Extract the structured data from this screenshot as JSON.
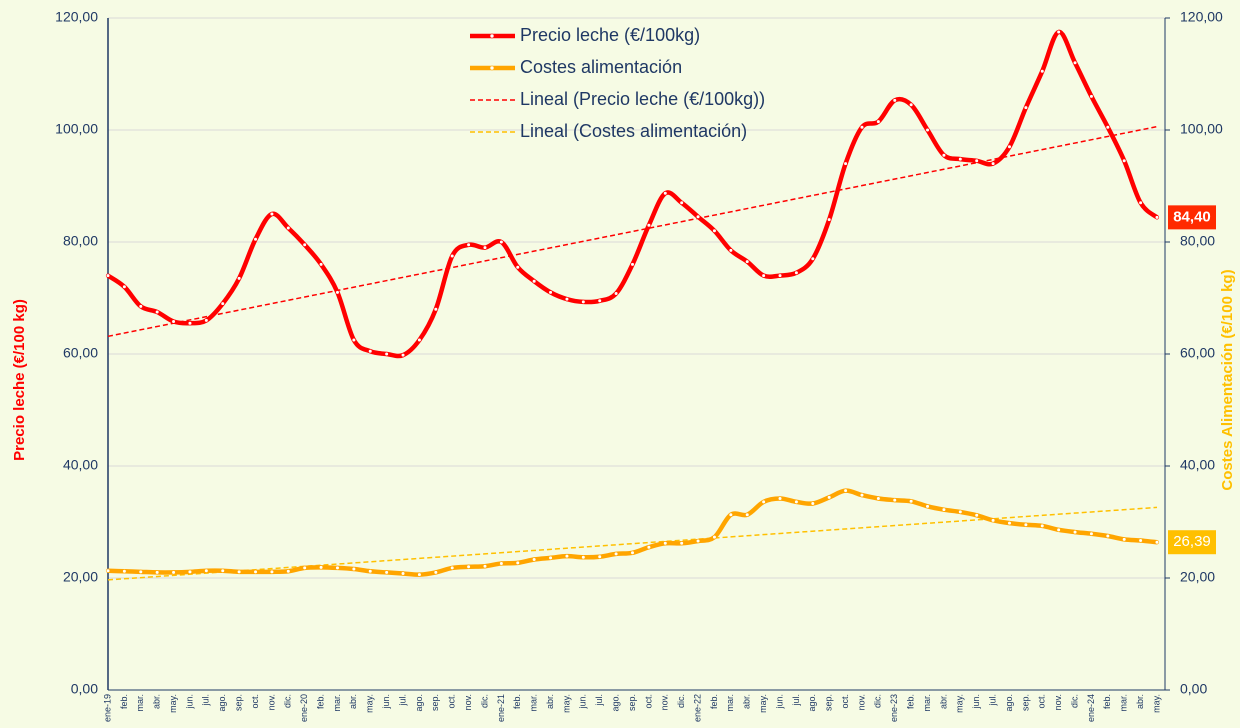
{
  "chart_data": {
    "type": "line",
    "categories": [
      "ene-19",
      "feb.",
      "mar.",
      "abr.",
      "may.",
      "jun.",
      "jul.",
      "ago.",
      "sep.",
      "oct.",
      "nov.",
      "dic.",
      "ene-20",
      "feb.",
      "mar.",
      "abr.",
      "may.",
      "jun.",
      "jul.",
      "ago.",
      "sep.",
      "oct.",
      "nov.",
      "dic.",
      "ene-21",
      "feb.",
      "mar.",
      "abr.",
      "may.",
      "jun.",
      "jul.",
      "ago.",
      "sep.",
      "oct.",
      "nov.",
      "dic.",
      "ene-22",
      "feb.",
      "mar.",
      "abr.",
      "may.",
      "jun.",
      "jul.",
      "ago.",
      "sep.",
      "oct.",
      "nov.",
      "dic.",
      "ene-23",
      "feb.",
      "mar.",
      "abr.",
      "may.",
      "jun.",
      "jul.",
      "ago.",
      "sep.",
      "oct.",
      "nov.",
      "dic.",
      "ene-24",
      "feb.",
      "mar.",
      "abr.",
      "may."
    ],
    "series": [
      {
        "name": "Precio leche (€/100kg)",
        "color": "#ff0000",
        "axis": "y",
        "values": [
          74,
          72,
          68.5,
          67.5,
          65.8,
          65.5,
          66,
          69,
          73.5,
          80.5,
          85,
          82.5,
          79.5,
          76,
          71,
          62.5,
          60.5,
          60,
          59.8,
          62.5,
          68,
          77.5,
          79.5,
          79,
          80,
          75.5,
          73,
          71,
          69.8,
          69.3,
          69.5,
          70.8,
          76,
          83,
          88.7,
          87,
          84.5,
          82,
          78.5,
          76.5,
          74,
          74,
          74.5,
          77,
          84,
          94,
          100.5,
          101.5,
          105.3,
          104.5,
          100,
          95.5,
          94.8,
          94.5,
          94,
          97,
          104,
          110.5,
          117.5,
          112,
          106,
          100.5,
          94.5,
          87,
          84.4
        ],
        "value_labels": {
          "64": "84,40"
        }
      },
      {
        "name": "Costes alimentación",
        "color": "#ffa500",
        "axis": "y2",
        "values": [
          21.3,
          21.2,
          21.1,
          21,
          21,
          21.1,
          21.3,
          21.3,
          21.1,
          21.1,
          21.1,
          21.2,
          21.8,
          21.9,
          21.8,
          21.6,
          21.2,
          21,
          20.8,
          20.6,
          21,
          21.8,
          22,
          22.1,
          22.6,
          22.7,
          23.3,
          23.6,
          23.9,
          23.7,
          23.8,
          24.3,
          24.5,
          25.5,
          26.2,
          26.2,
          26.6,
          27.3,
          31.3,
          31.3,
          33.6,
          34.2,
          33.6,
          33.3,
          34.4,
          35.6,
          34.8,
          34.2,
          33.9,
          33.7,
          32.8,
          32.2,
          31.8,
          31.2,
          30.3,
          29.8,
          29.5,
          29.3,
          28.6,
          28.2,
          27.9,
          27.5,
          26.9,
          26.7,
          26.39
        ],
        "value_labels": {
          "64": "26,39"
        }
      }
    ],
    "trendlines": [
      {
        "name": "Lineal (Precio leche (€/100kg))",
        "color": "#ff0000",
        "series": 0
      },
      {
        "name": "Lineal (Costes alimentación)",
        "color": "#ffc000",
        "series": 1
      }
    ],
    "ylabel": "Precio leche (€/100 kg)",
    "y2label": "Costes Alimentación (€/100 kg)",
    "ylim": [
      0,
      120
    ],
    "yticks": [
      {
        "value": 0,
        "label": "0,00"
      },
      {
        "value": 20,
        "label": "20,00"
      },
      {
        "value": 40,
        "label": "40,00"
      },
      {
        "value": 60,
        "label": "60,00"
      },
      {
        "value": 80,
        "label": "80,00"
      },
      {
        "value": 100,
        "label": "100,00"
      },
      {
        "value": 120,
        "label": "120,00"
      }
    ],
    "y2lim": [
      0,
      120
    ],
    "y2ticks": [
      {
        "value": 0,
        "label": "0,00"
      },
      {
        "value": 20,
        "label": "20,00"
      },
      {
        "value": 40,
        "label": "40,00"
      },
      {
        "value": 60,
        "label": "60,00"
      },
      {
        "value": 80,
        "label": "80,00"
      },
      {
        "value": 100,
        "label": "100,00"
      },
      {
        "value": 120,
        "label": "120,00"
      }
    ],
    "grid": true,
    "legend": "top"
  }
}
